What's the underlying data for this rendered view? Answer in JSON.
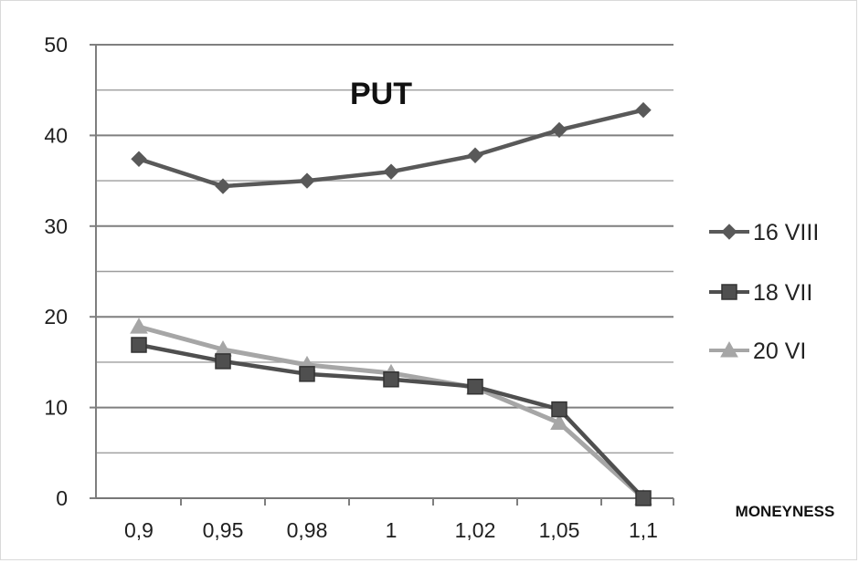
{
  "chart_data": {
    "type": "line",
    "title": "PUT",
    "xlabel": "MONEYNESS",
    "ylabel": "",
    "categories": [
      "0,9",
      "0,95",
      "0,98",
      "1",
      "1,02",
      "1,05",
      "1,1"
    ],
    "ylim": [
      0,
      50
    ],
    "yticks": [
      0,
      10,
      20,
      30,
      40,
      50
    ],
    "grid": true,
    "legend_position": "right",
    "series": [
      {
        "name": "16 VIII",
        "values": [
          37.4,
          34.4,
          35.0,
          36.0,
          37.8,
          40.6,
          42.8
        ],
        "color": "#595959",
        "marker": "diamond"
      },
      {
        "name": "18 VII",
        "values": [
          16.9,
          15.1,
          13.7,
          13.1,
          12.3,
          9.8,
          0.0
        ],
        "color": "#4f4f4f",
        "marker": "square"
      },
      {
        "name": "20 VI",
        "values": [
          18.9,
          16.4,
          14.7,
          13.8,
          12.2,
          8.3,
          0.0
        ],
        "color": "#a6a6a6",
        "marker": "triangle"
      }
    ]
  }
}
